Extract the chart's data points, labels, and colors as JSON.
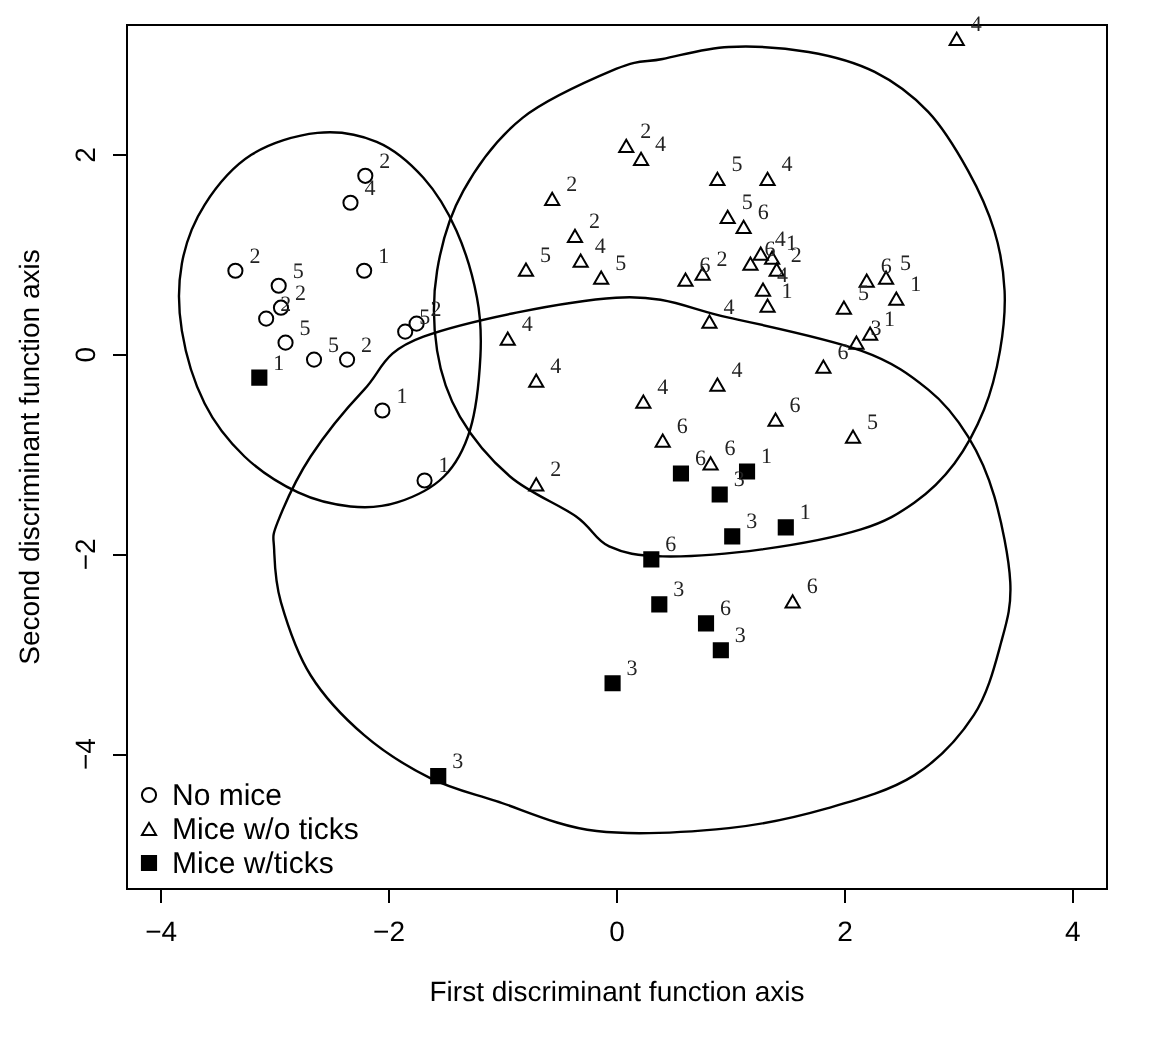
{
  "chart_data": {
    "type": "scatter",
    "xlabel": "First discriminant function axis",
    "ylabel": "Second discriminant function axis",
    "xlim": [
      -4.3,
      4.3
    ],
    "ylim": [
      -5.35,
      3.3
    ],
    "xticks": [
      -4,
      -2,
      0,
      2,
      4
    ],
    "yticks": [
      -4,
      -2,
      0,
      2
    ],
    "legend": "bottom left",
    "series": [
      {
        "name": "No mice",
        "color": "#000000",
        "marker": "circle",
        "x": [
          -2.2,
          -2.33,
          -2.21,
          -3.34,
          -2.96,
          -2.94,
          -3.07,
          -2.9,
          -2.65,
          -2.36,
          -1.85,
          -1.75,
          -2.05,
          -1.68
        ],
        "values": [
          1.78,
          1.51,
          0.83,
          0.83,
          0.68,
          0.46,
          0.35,
          0.11,
          -0.06,
          -0.06,
          0.22,
          0.3,
          -0.57,
          -1.27
        ]
      },
      {
        "name": "Mice w/o ticks",
        "color": "#000000",
        "marker": "triangle",
        "x": [
          -0.56,
          -0.36,
          -0.79,
          -0.31,
          -0.13,
          -0.95,
          -0.7,
          -0.7,
          2.99,
          0.09,
          0.22,
          0.89,
          1.33,
          0.98,
          1.12,
          1.18,
          1.27,
          1.37,
          1.41,
          0.61,
          0.76,
          1.29,
          1.33,
          2.2,
          2.37,
          2.46,
          2.0,
          2.23,
          2.11,
          0.82,
          1.82,
          0.89,
          0.24,
          1.4,
          2.08,
          0.41,
          0.83,
          1.55
        ],
        "values": [
          1.55,
          1.18,
          0.84,
          0.93,
          0.76,
          0.15,
          -0.27,
          -1.31,
          3.15,
          2.08,
          1.95,
          1.75,
          1.75,
          1.37,
          1.27,
          0.9,
          1.0,
          0.96,
          0.84,
          0.74,
          0.8,
          0.64,
          0.48,
          0.73,
          0.76,
          0.55,
          0.46,
          0.2,
          0.11,
          0.32,
          -0.13,
          -0.31,
          -0.48,
          -0.66,
          -0.83,
          -0.87,
          -1.1,
          -2.48
        ]
      },
      {
        "name": "Mice w/ticks",
        "color": "#000000",
        "marker": "square",
        "x": [
          -3.13,
          0.57,
          1.15,
          0.91,
          1.49,
          1.02,
          0.31,
          0.38,
          0.79,
          0.92,
          -0.03,
          -1.56
        ],
        "values": [
          -0.24,
          -1.2,
          -1.18,
          -1.41,
          -1.74,
          -1.83,
          -2.06,
          -2.51,
          -2.7,
          -2.97,
          -3.3,
          -4.23
        ]
      }
    ],
    "annotations": [
      {
        "text": "2",
        "x": -2.2,
        "y": 1.78
      },
      {
        "text": "4",
        "x": -2.33,
        "y": 1.51
      },
      {
        "text": "1",
        "x": -2.21,
        "y": 0.83
      },
      {
        "text": "2",
        "x": -3.34,
        "y": 0.83
      },
      {
        "text": "5",
        "x": -2.96,
        "y": 0.68
      },
      {
        "text": "2",
        "x": -2.94,
        "y": 0.46
      },
      {
        "text": "2",
        "x": -3.07,
        "y": 0.35
      },
      {
        "text": "5",
        "x": -2.9,
        "y": 0.11
      },
      {
        "text": "5",
        "x": -2.65,
        "y": -0.06
      },
      {
        "text": "2",
        "x": -2.36,
        "y": -0.06
      },
      {
        "text": "5",
        "x": -1.85,
        "y": 0.22
      },
      {
        "text": "2",
        "x": -1.75,
        "y": 0.3
      },
      {
        "text": "1",
        "x": -2.05,
        "y": -0.57
      },
      {
        "text": "1",
        "x": -1.68,
        "y": -1.27
      },
      {
        "text": "2",
        "x": -0.56,
        "y": 1.55
      },
      {
        "text": "2",
        "x": -0.36,
        "y": 1.18
      },
      {
        "text": "5",
        "x": -0.79,
        "y": 0.84
      },
      {
        "text": "4",
        "x": -0.31,
        "y": 0.93
      },
      {
        "text": "5",
        "x": -0.13,
        "y": 0.76
      },
      {
        "text": "4",
        "x": -0.95,
        "y": 0.15
      },
      {
        "text": "4",
        "x": -0.7,
        "y": -0.27
      },
      {
        "text": "2",
        "x": -0.7,
        "y": -1.31
      },
      {
        "text": "4",
        "x": 2.99,
        "y": 3.15
      },
      {
        "text": "2",
        "x": 0.09,
        "y": 2.08
      },
      {
        "text": "4",
        "x": 0.22,
        "y": 1.95
      },
      {
        "text": "5",
        "x": 0.89,
        "y": 1.75
      },
      {
        "text": "4",
        "x": 1.33,
        "y": 1.75
      },
      {
        "text": "5",
        "x": 0.98,
        "y": 1.37
      },
      {
        "text": "6",
        "x": 1.12,
        "y": 1.27
      },
      {
        "text": "6",
        "x": 1.18,
        "y": 0.9
      },
      {
        "text": "4",
        "x": 1.27,
        "y": 1.0
      },
      {
        "text": "1",
        "x": 1.37,
        "y": 0.96
      },
      {
        "text": "2",
        "x": 1.41,
        "y": 0.84
      },
      {
        "text": "6",
        "x": 0.61,
        "y": 0.74
      },
      {
        "text": "2",
        "x": 0.76,
        "y": 0.8
      },
      {
        "text": "4",
        "x": 1.29,
        "y": 0.64
      },
      {
        "text": "1",
        "x": 1.33,
        "y": 0.48
      },
      {
        "text": "6",
        "x": 2.2,
        "y": 0.73
      },
      {
        "text": "5",
        "x": 2.37,
        "y": 0.76
      },
      {
        "text": "1",
        "x": 2.46,
        "y": 0.55
      },
      {
        "text": "5",
        "x": 2.0,
        "y": 0.46
      },
      {
        "text": "1",
        "x": 2.23,
        "y": 0.2
      },
      {
        "text": "3",
        "x": 2.11,
        "y": 0.11
      },
      {
        "text": "4",
        "x": 0.82,
        "y": 0.32
      },
      {
        "text": "6",
        "x": 1.82,
        "y": -0.13
      },
      {
        "text": "4",
        "x": 0.89,
        "y": -0.31
      },
      {
        "text": "4",
        "x": 0.24,
        "y": -0.48
      },
      {
        "text": "6",
        "x": 1.4,
        "y": -0.66
      },
      {
        "text": "5",
        "x": 2.08,
        "y": -0.83
      },
      {
        "text": "6",
        "x": 0.41,
        "y": -0.87
      },
      {
        "text": "6",
        "x": 0.83,
        "y": -1.1
      },
      {
        "text": "6",
        "x": 1.55,
        "y": -2.48
      },
      {
        "text": "1",
        "x": -3.13,
        "y": -0.24
      },
      {
        "text": "6",
        "x": 0.57,
        "y": -1.2
      },
      {
        "text": "1",
        "x": 1.15,
        "y": -1.18
      },
      {
        "text": "3",
        "x": 0.91,
        "y": -1.41
      },
      {
        "text": "1",
        "x": 1.49,
        "y": -1.74
      },
      {
        "text": "3",
        "x": 1.02,
        "y": -1.83
      },
      {
        "text": "6",
        "x": 0.31,
        "y": -2.06
      },
      {
        "text": "3",
        "x": 0.38,
        "y": -2.51
      },
      {
        "text": "6",
        "x": 0.79,
        "y": -2.7
      },
      {
        "text": "3",
        "x": 0.92,
        "y": -2.97
      },
      {
        "text": "3",
        "x": -0.03,
        "y": -3.3
      },
      {
        "text": "3",
        "x": -1.56,
        "y": -4.23
      }
    ]
  }
}
